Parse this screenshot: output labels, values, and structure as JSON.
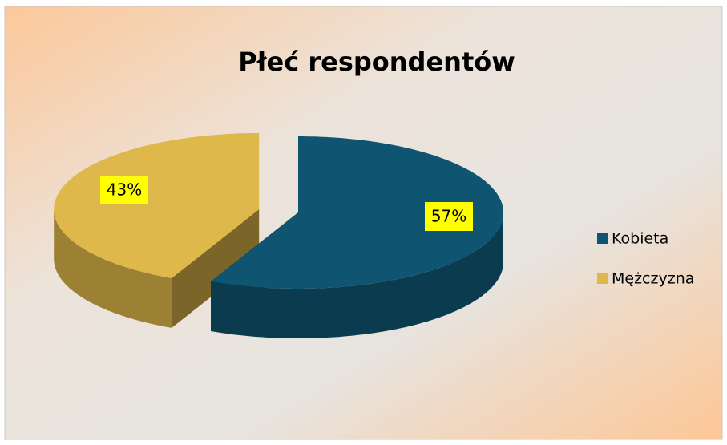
{
  "chart_data": {
    "type": "pie3d",
    "title": "Płeć respondentów",
    "categories": [
      "Kobieta",
      "Mężczyzna"
    ],
    "values": [
      57,
      43
    ],
    "value_labels": [
      "57%",
      "43%"
    ],
    "colors": [
      "#0f5470",
      "#dfb84b"
    ],
    "legend": "right"
  }
}
